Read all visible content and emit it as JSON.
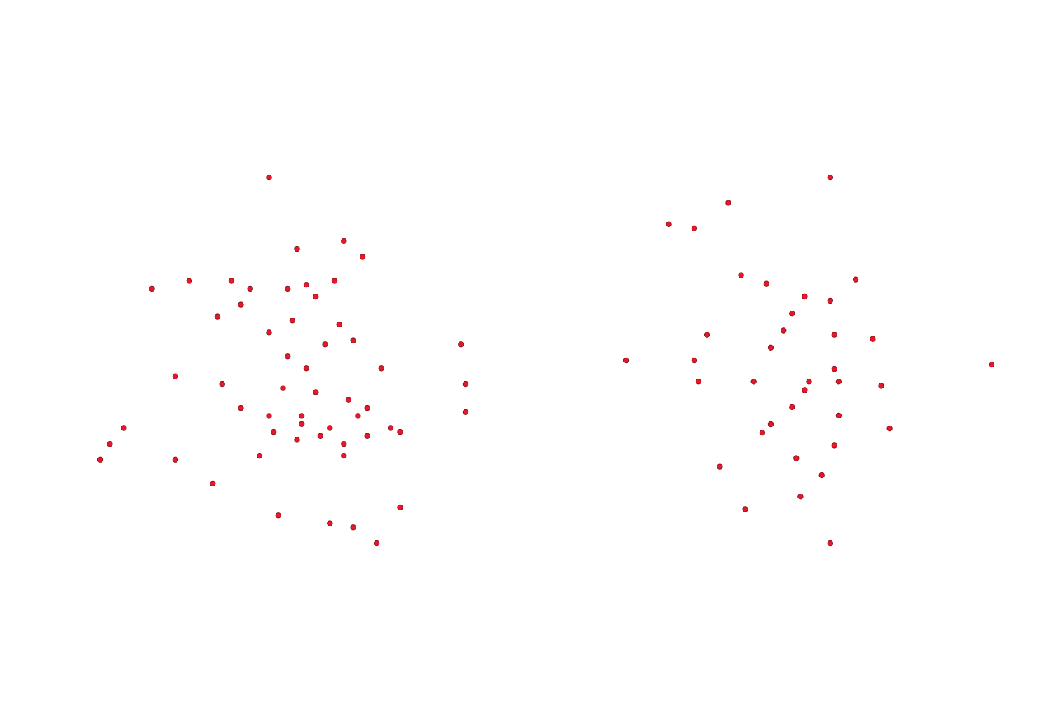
{
  "colors": {
    "background": "#ffffff",
    "marker_fill": "#e8162a",
    "marker_edge": "#7a0d14"
  },
  "chart_data": [
    {
      "type": "scatter",
      "grid": false,
      "axes_visible": false,
      "x": [
        -0.1,
        0.2,
        0.7,
        0.9,
        -0.5,
        -0.3,
        0.1,
        0.4,
        0.6,
        -0.4,
        0.65,
        0.15,
        -0.1,
        0.5,
        0.1,
        0.3,
        0.8,
        1.1,
        -1.1,
        -0.6,
        0.05,
        0.4,
        0.75,
        0.95,
        -0.95,
        -1.35,
        1.95,
        2.0,
        2.0,
        -0.4,
        -0.1,
        0.25,
        0.55,
        0.85,
        1.3,
        -1.65,
        -1.8,
        -1.9,
        -1.1,
        -0.05,
        -0.2,
        0.2,
        0.45,
        0.7,
        0.25,
        1.2,
        0.95,
        1.3,
        -0.7,
        0.8,
        0.0,
        0.55,
        1.05,
        0.3,
        -0.65,
        0.7
      ],
      "y": [
        2.4,
        1.5,
        1.6,
        1.4,
        1.1,
        1.0,
        1.0,
        0.9,
        1.1,
        0.8,
        0.55,
        0.6,
        0.45,
        0.3,
        0.15,
        0.0,
        0.35,
        0.0,
        -0.1,
        -0.2,
        -0.25,
        -0.3,
        -0.4,
        -0.5,
        1.1,
        1.0,
        0.3,
        -0.2,
        -0.55,
        -0.5,
        -0.6,
        -0.6,
        -0.75,
        -0.6,
        -0.8,
        -0.75,
        -0.95,
        -1.15,
        -1.15,
        -0.8,
        -1.1,
        -0.9,
        -0.85,
        -0.95,
        -0.7,
        -0.75,
        -0.85,
        -1.75,
        -1.45,
        -2.0,
        -1.85,
        -1.95,
        -2.2,
        1.05,
        0.65,
        -1.1
      ]
    },
    {
      "type": "scatter",
      "grid": false,
      "axes_visible": false,
      "x": [
        0.8,
        -0.4,
        -0.8,
        -1.1,
        -0.25,
        0.05,
        0.5,
        0.8,
        1.1,
        0.85,
        0.35,
        0.25,
        0.1,
        0.55,
        0.85,
        1.3,
        -0.65,
        -0.1,
        0.5,
        0.9,
        1.4,
        -0.8,
        0.35,
        0.1,
        0.4,
        0.7,
        0.9,
        -0.5,
        -0.75,
        2.7,
        -1.6,
        1.5,
        0.0,
        0.85,
        0.45,
        -0.2,
        0.8
      ],
      "y": [
        2.4,
        2.1,
        1.8,
        1.85,
        1.25,
        1.15,
        1.0,
        0.95,
        1.2,
        0.55,
        0.8,
        0.6,
        0.4,
        0.0,
        0.15,
        0.5,
        0.55,
        0.0,
        -0.1,
        0.0,
        -0.05,
        0.25,
        -0.3,
        -0.5,
        -0.9,
        -1.1,
        -0.4,
        -1.0,
        0.0,
        0.2,
        0.25,
        -0.55,
        -0.6,
        -0.75,
        -1.35,
        -1.5,
        -1.9
      ]
    }
  ]
}
